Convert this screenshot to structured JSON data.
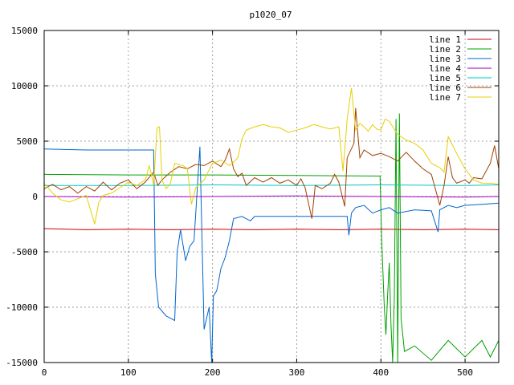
{
  "chart_data": {
    "type": "line",
    "title": "p1020_07",
    "xlabel": "",
    "ylabel": "",
    "xlim": [
      0,
      540
    ],
    "ylim": [
      -15000,
      15000
    ],
    "x_ticks": [
      0,
      100,
      200,
      300,
      400,
      500
    ],
    "y_ticks": [
      -15000,
      -10000,
      -5000,
      0,
      5000,
      10000,
      15000
    ],
    "grid": true,
    "legend_position": "top-right",
    "series": [
      {
        "name": "line 1",
        "color": "#cc0000",
        "points": [
          [
            0,
            -2900
          ],
          [
            50,
            -3000
          ],
          [
            100,
            -2950
          ],
          [
            150,
            -3000
          ],
          [
            200,
            -2950
          ],
          [
            250,
            -3000
          ],
          [
            300,
            -2950
          ],
          [
            350,
            -3000
          ],
          [
            400,
            -2950
          ],
          [
            450,
            -3000
          ],
          [
            500,
            -2950
          ],
          [
            540,
            -3000
          ]
        ]
      },
      {
        "name": "line 2",
        "color": "#00a000",
        "points": [
          [
            0,
            2000
          ],
          [
            100,
            1950
          ],
          [
            200,
            1950
          ],
          [
            300,
            1900
          ],
          [
            399,
            1850
          ],
          [
            401,
            -4000
          ],
          [
            404,
            -10000
          ],
          [
            406,
            -12500
          ],
          [
            408,
            -9000
          ],
          [
            410,
            -6000
          ],
          [
            412,
            -11500
          ],
          [
            414,
            -15000
          ],
          [
            416,
            -9000
          ],
          [
            418,
            7000
          ],
          [
            420,
            -15000
          ],
          [
            422,
            7500
          ],
          [
            424,
            -11000
          ],
          [
            428,
            -14000
          ],
          [
            440,
            -13500
          ],
          [
            460,
            -14800
          ],
          [
            480,
            -13000
          ],
          [
            500,
            -14500
          ],
          [
            520,
            -13000
          ],
          [
            530,
            -14500
          ],
          [
            540,
            -13000
          ]
        ]
      },
      {
        "name": "line 3",
        "color": "#0066cc",
        "points": [
          [
            0,
            4300
          ],
          [
            50,
            4200
          ],
          [
            100,
            4200
          ],
          [
            130,
            4200
          ],
          [
            132,
            -7000
          ],
          [
            136,
            -10000
          ],
          [
            145,
            -10800
          ],
          [
            155,
            -11200
          ],
          [
            158,
            -5000
          ],
          [
            162,
            -3000
          ],
          [
            168,
            -5800
          ],
          [
            173,
            -4500
          ],
          [
            178,
            -4000
          ],
          [
            185,
            4500
          ],
          [
            190,
            -12000
          ],
          [
            196,
            -10000
          ],
          [
            199,
            -15000
          ],
          [
            201,
            -9000
          ],
          [
            205,
            -8500
          ],
          [
            210,
            -6500
          ],
          [
            215,
            -5500
          ],
          [
            220,
            -4000
          ],
          [
            225,
            -2000
          ],
          [
            235,
            -1800
          ],
          [
            245,
            -2200
          ],
          [
            250,
            -1800
          ],
          [
            300,
            -1800
          ],
          [
            345,
            -1800
          ],
          [
            360,
            -1800
          ],
          [
            362,
            -3500
          ],
          [
            365,
            -1500
          ],
          [
            370,
            -1000
          ],
          [
            380,
            -800
          ],
          [
            390,
            -1500
          ],
          [
            400,
            -1200
          ],
          [
            410,
            -1000
          ],
          [
            420,
            -1500
          ],
          [
            440,
            -1200
          ],
          [
            460,
            -1300
          ],
          [
            468,
            -3200
          ],
          [
            470,
            -1200
          ],
          [
            480,
            -800
          ],
          [
            490,
            -1000
          ],
          [
            500,
            -800
          ],
          [
            520,
            -700
          ],
          [
            540,
            -600
          ]
        ]
      },
      {
        "name": "line 4",
        "color": "#a000c0",
        "points": [
          [
            0,
            0
          ],
          [
            100,
            -50
          ],
          [
            200,
            0
          ],
          [
            300,
            50
          ],
          [
            400,
            0
          ],
          [
            500,
            -50
          ],
          [
            540,
            0
          ]
        ]
      },
      {
        "name": "line 5",
        "color": "#00c8c8",
        "points": [
          [
            0,
            1000
          ],
          [
            100,
            1000
          ],
          [
            200,
            1050
          ],
          [
            300,
            1000
          ],
          [
            400,
            1050
          ],
          [
            500,
            1000
          ],
          [
            540,
            1050
          ]
        ]
      },
      {
        "name": "line 6",
        "color": "#a04000",
        "points": [
          [
            0,
            700
          ],
          [
            10,
            1100
          ],
          [
            20,
            600
          ],
          [
            30,
            900
          ],
          [
            40,
            300
          ],
          [
            50,
            900
          ],
          [
            60,
            500
          ],
          [
            70,
            1300
          ],
          [
            80,
            600
          ],
          [
            90,
            1200
          ],
          [
            100,
            1500
          ],
          [
            110,
            700
          ],
          [
            120,
            1300
          ],
          [
            130,
            2200
          ],
          [
            135,
            1000
          ],
          [
            140,
            1500
          ],
          [
            150,
            2200
          ],
          [
            160,
            2700
          ],
          [
            170,
            2500
          ],
          [
            180,
            2900
          ],
          [
            190,
            2800
          ],
          [
            200,
            3200
          ],
          [
            210,
            2700
          ],
          [
            215,
            3300
          ],
          [
            220,
            4300
          ],
          [
            225,
            2500
          ],
          [
            230,
            1800
          ],
          [
            235,
            2100
          ],
          [
            240,
            1000
          ],
          [
            250,
            1700
          ],
          [
            260,
            1300
          ],
          [
            270,
            1700
          ],
          [
            280,
            1200
          ],
          [
            290,
            1500
          ],
          [
            300,
            1000
          ],
          [
            305,
            1600
          ],
          [
            310,
            800
          ],
          [
            318,
            -2000
          ],
          [
            322,
            1000
          ],
          [
            330,
            700
          ],
          [
            340,
            1200
          ],
          [
            345,
            2000
          ],
          [
            350,
            1300
          ],
          [
            357,
            -900
          ],
          [
            360,
            3500
          ],
          [
            368,
            4800
          ],
          [
            370,
            8000
          ],
          [
            375,
            3500
          ],
          [
            380,
            4200
          ],
          [
            390,
            3700
          ],
          [
            400,
            3900
          ],
          [
            410,
            3600
          ],
          [
            420,
            3200
          ],
          [
            430,
            4000
          ],
          [
            440,
            3200
          ],
          [
            450,
            2500
          ],
          [
            460,
            2000
          ],
          [
            465,
            600
          ],
          [
            470,
            -800
          ],
          [
            475,
            1000
          ],
          [
            480,
            3600
          ],
          [
            485,
            1700
          ],
          [
            490,
            1200
          ],
          [
            500,
            1500
          ],
          [
            505,
            1200
          ],
          [
            510,
            1700
          ],
          [
            520,
            1600
          ],
          [
            530,
            3000
          ],
          [
            535,
            4600
          ],
          [
            540,
            2500
          ]
        ]
      },
      {
        "name": "line 7",
        "color": "#e6d000",
        "points": [
          [
            0,
            1200
          ],
          [
            10,
            300
          ],
          [
            20,
            -300
          ],
          [
            30,
            -500
          ],
          [
            40,
            -200
          ],
          [
            50,
            100
          ],
          [
            55,
            -1200
          ],
          [
            60,
            -2500
          ],
          [
            65,
            -500
          ],
          [
            70,
            100
          ],
          [
            80,
            300
          ],
          [
            90,
            800
          ],
          [
            100,
            1300
          ],
          [
            110,
            1000
          ],
          [
            120,
            1500
          ],
          [
            125,
            2800
          ],
          [
            130,
            1000
          ],
          [
            134,
            6200
          ],
          [
            137,
            6300
          ],
          [
            140,
            1500
          ],
          [
            145,
            700
          ],
          [
            150,
            1200
          ],
          [
            155,
            3000
          ],
          [
            165,
            2800
          ],
          [
            170,
            2500
          ],
          [
            175,
            -700
          ],
          [
            180,
            800
          ],
          [
            190,
            1500
          ],
          [
            200,
            3000
          ],
          [
            210,
            3300
          ],
          [
            220,
            2800
          ],
          [
            225,
            3100
          ],
          [
            230,
            3500
          ],
          [
            235,
            5200
          ],
          [
            240,
            6000
          ],
          [
            250,
            6300
          ],
          [
            260,
            6500
          ],
          [
            270,
            6300
          ],
          [
            280,
            6200
          ],
          [
            290,
            5800
          ],
          [
            300,
            6000
          ],
          [
            310,
            6200
          ],
          [
            320,
            6500
          ],
          [
            330,
            6300
          ],
          [
            340,
            6100
          ],
          [
            350,
            6300
          ],
          [
            355,
            2300
          ],
          [
            360,
            7000
          ],
          [
            365,
            9800
          ],
          [
            370,
            6000
          ],
          [
            375,
            6600
          ],
          [
            380,
            6300
          ],
          [
            385,
            5900
          ],
          [
            390,
            6500
          ],
          [
            395,
            6100
          ],
          [
            400,
            6000
          ],
          [
            405,
            7000
          ],
          [
            410,
            6800
          ],
          [
            420,
            5600
          ],
          [
            430,
            5100
          ],
          [
            440,
            4800
          ],
          [
            450,
            4200
          ],
          [
            460,
            3000
          ],
          [
            470,
            2600
          ],
          [
            475,
            2200
          ],
          [
            480,
            5400
          ],
          [
            490,
            3900
          ],
          [
            500,
            2500
          ],
          [
            510,
            1500
          ],
          [
            520,
            1200
          ],
          [
            530,
            1200
          ],
          [
            540,
            1100
          ]
        ]
      }
    ]
  }
}
